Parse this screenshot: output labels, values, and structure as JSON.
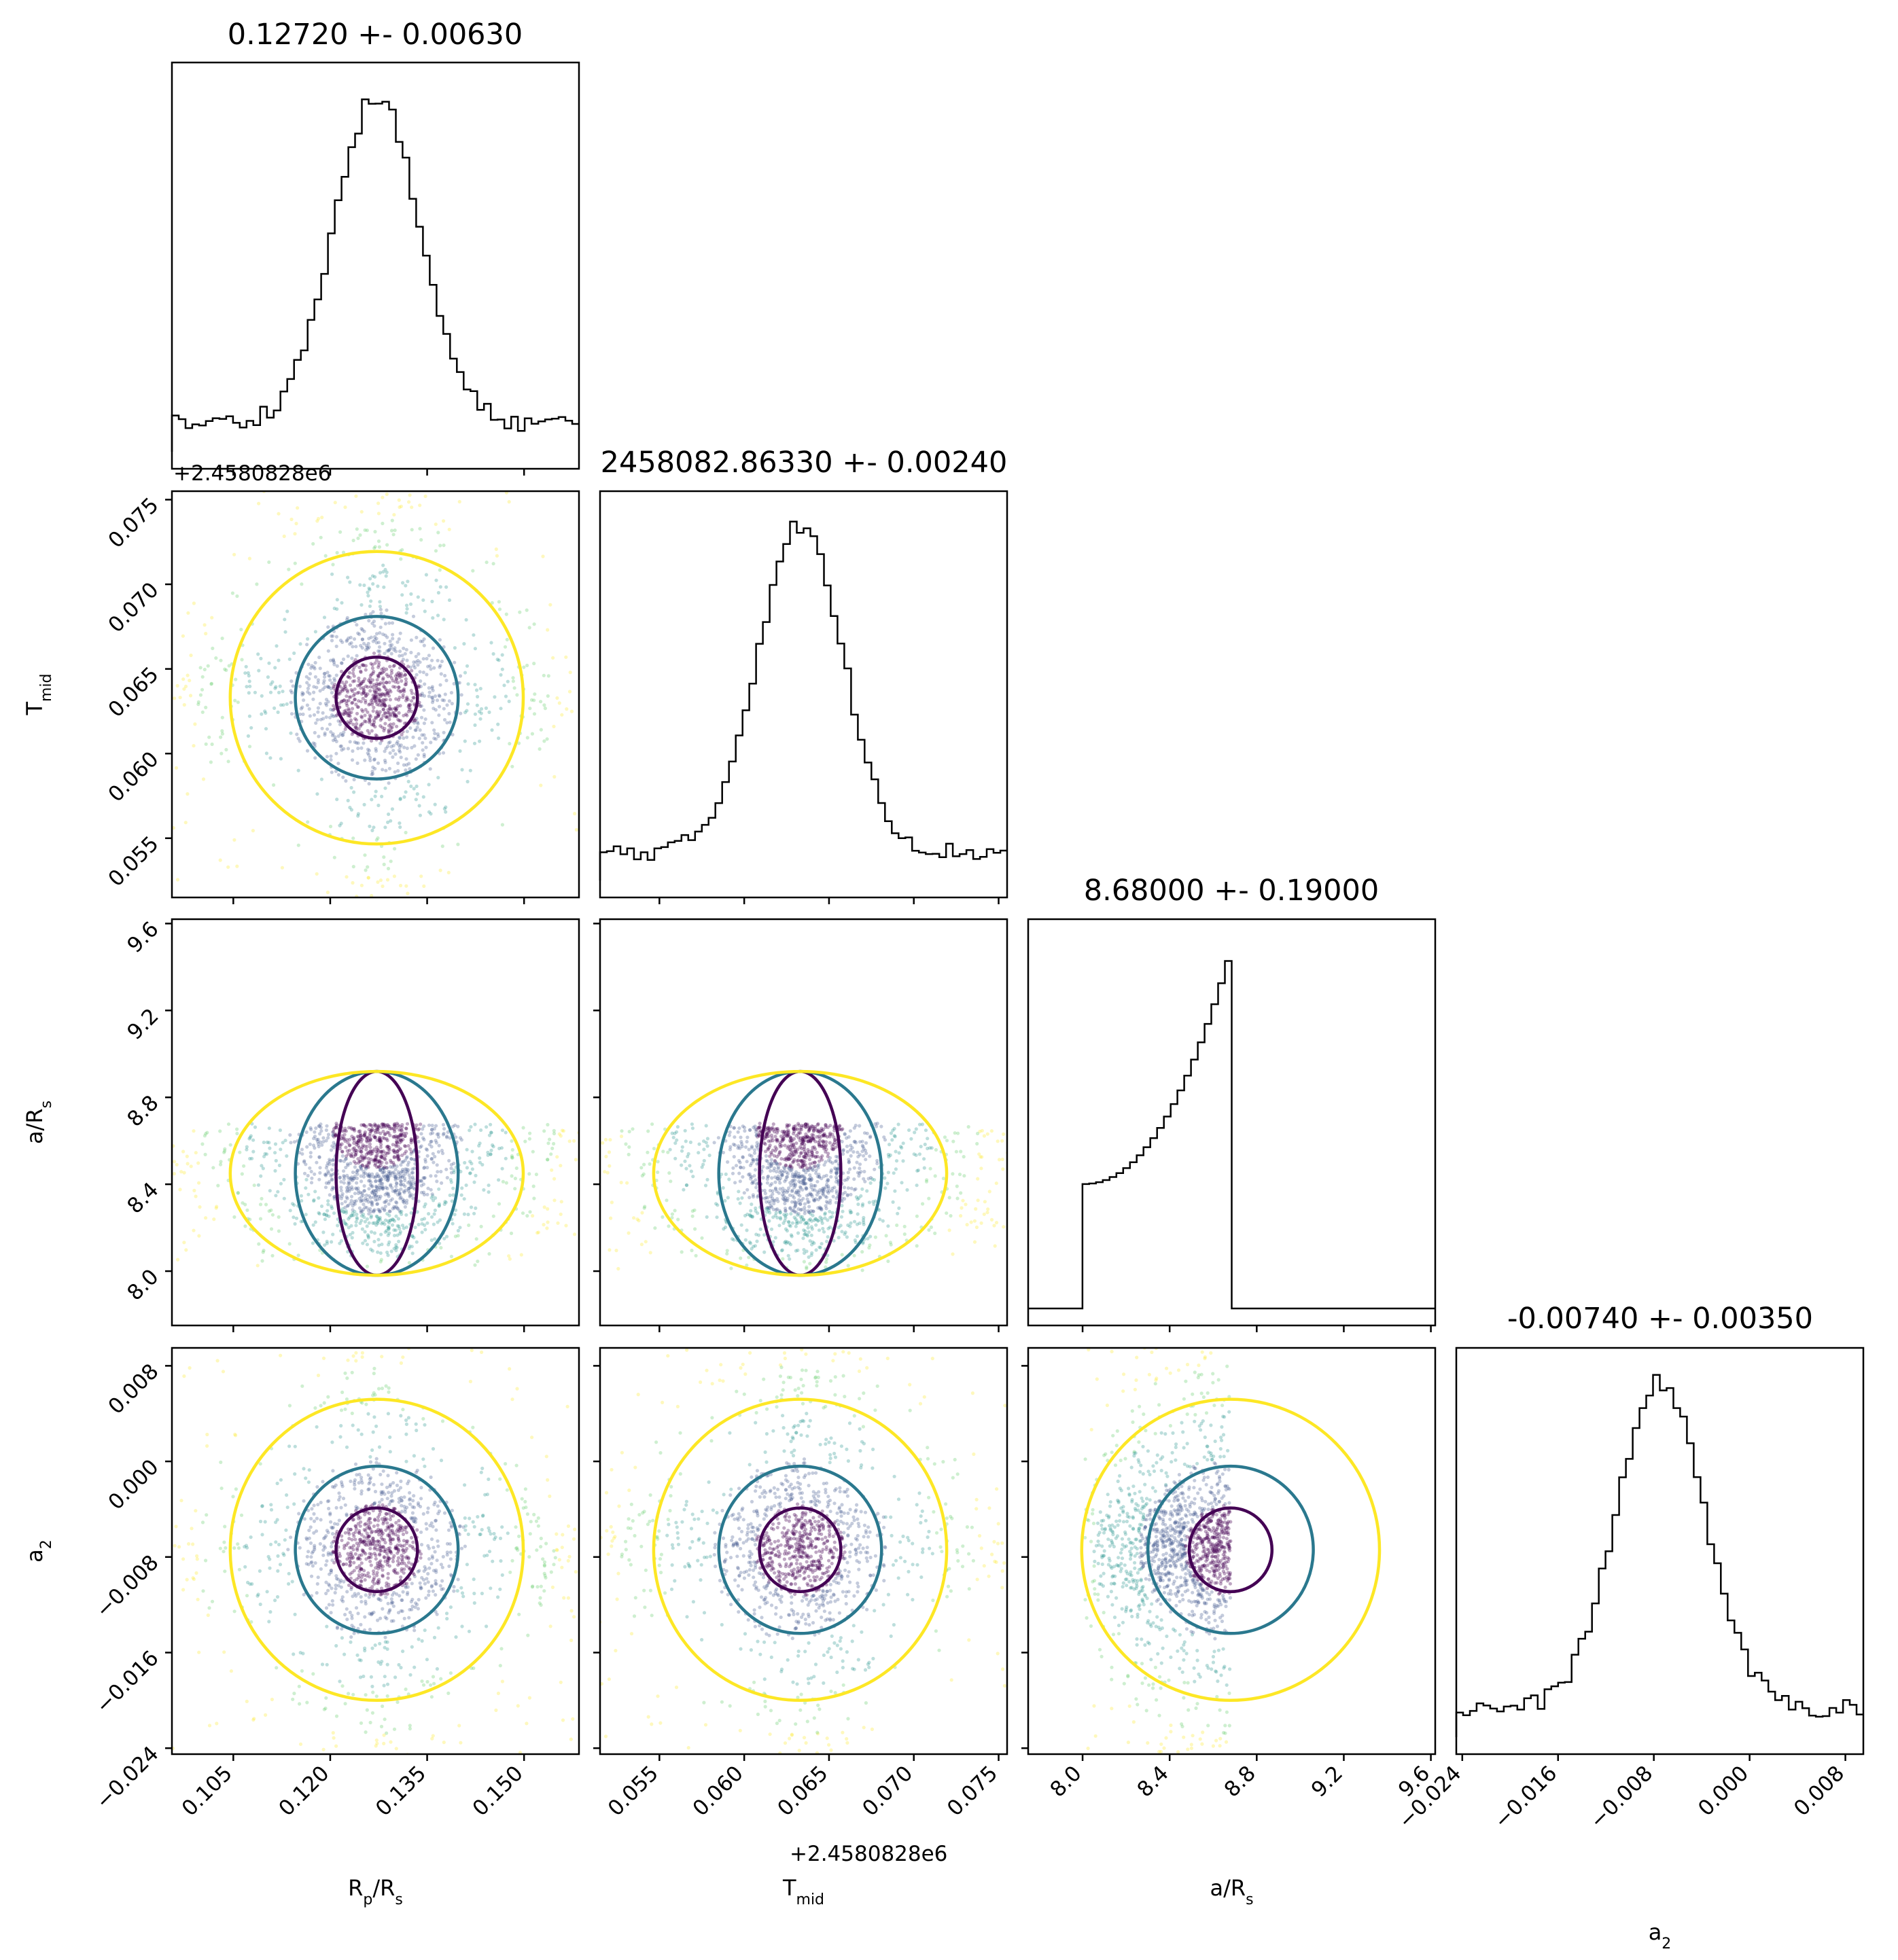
{
  "chart_data": {
    "type": "corner",
    "parameters": [
      {
        "id": "rp",
        "label_main": "R",
        "label_sub": "p",
        "label_tail": "/R",
        "label_sub2": "s",
        "title": "0.12720 +- 0.00630",
        "mean": 0.1272,
        "sigma": 0.0063,
        "range": [
          0.0955,
          0.1585
        ],
        "ticks": [
          "0.105",
          "0.120",
          "0.135",
          "0.150"
        ],
        "tick_values": [
          0.105,
          0.12,
          0.135,
          0.15
        ]
      },
      {
        "id": "tmid",
        "label_main": "T",
        "label_sub": "mid",
        "label_tail": "",
        "label_sub2": "",
        "title": "2458082.86330 +- 0.00240",
        "mean": 0.0633,
        "sigma": 0.0024,
        "range": [
          0.0515,
          0.0755
        ],
        "ticks": [
          "0.055",
          "0.060",
          "0.065",
          "0.070",
          "0.075"
        ],
        "tick_values": [
          0.055,
          0.06,
          0.065,
          0.07,
          0.075
        ],
        "offset": "+2.4580828e6"
      },
      {
        "id": "ars",
        "label_main": "a/R",
        "label_sub": "s",
        "label_tail": "",
        "label_sub2": "",
        "title": "8.68000 +- 0.19000",
        "mean": 8.68,
        "sigma": 0.19,
        "range": [
          7.75,
          9.62
        ],
        "ticks": [
          "8.0",
          "8.4",
          "8.8",
          "9.2",
          "9.6"
        ],
        "tick_values": [
          8.0,
          8.4,
          8.8,
          9.2,
          9.6
        ],
        "bounds": [
          8.0,
          8.68
        ]
      },
      {
        "id": "a2",
        "label_main": "a",
        "label_sub": "2",
        "label_tail": "",
        "label_sub2": "",
        "title": "-0.00740 +- 0.00350",
        "mean": -0.0074,
        "sigma": 0.0035,
        "range": [
          -0.0245,
          0.0095
        ],
        "ticks": [
          "−0.024",
          "−0.016",
          "−0.008",
          "0.000",
          "0.008"
        ],
        "tick_values": [
          -0.024,
          -0.016,
          -0.008,
          0.0,
          0.008
        ]
      }
    ],
    "y_axis_offset_label": "+2.4580828e6",
    "x_axis_offset_label": "+2.4580828e6",
    "contour_colors": [
      "#440154",
      "#2a788e",
      "#fde725"
    ],
    "scatter_colormap": "viridis",
    "histogram_color": "#000000",
    "grid": false
  }
}
